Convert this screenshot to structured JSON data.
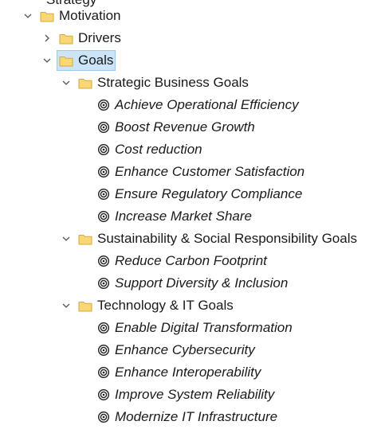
{
  "tree": {
    "top_partial_label": "Strategy",
    "motivation": {
      "label": "Motivation",
      "expanded": true
    },
    "drivers": {
      "label": "Drivers",
      "expanded": false
    },
    "goals": {
      "label": "Goals",
      "expanded": true,
      "selected": true
    },
    "groups": [
      {
        "label": "Strategic Business Goals",
        "items": [
          "Achieve Operational Efficiency",
          "Boost Revenue Growth",
          "Cost reduction",
          "Enhance Customer Satisfaction",
          "Ensure Regulatory Compliance",
          "Increase Market Share"
        ]
      },
      {
        "label": "Sustainability & Social Responsibility Goals",
        "items": [
          "Reduce Carbon Footprint",
          "Support Diversity & Inclusion"
        ]
      },
      {
        "label": "Technology & IT Goals",
        "items": [
          "Enable Digital Transformation",
          "Enhance Cybersecurity",
          "Enhance Interoperability",
          "Improve System Reliability",
          "Modernize IT Infrastructure"
        ]
      }
    ]
  },
  "colors": {
    "folder_fill": "#f8d775",
    "folder_stroke": "#d9a93b",
    "selection_bg": "#cce4f7",
    "selection_border": "#99c9ef"
  },
  "icons": {
    "expanded": "chevron-down-icon",
    "collapsed": "chevron-right-icon",
    "folder": "folder-icon",
    "goal": "goal-target-icon"
  }
}
